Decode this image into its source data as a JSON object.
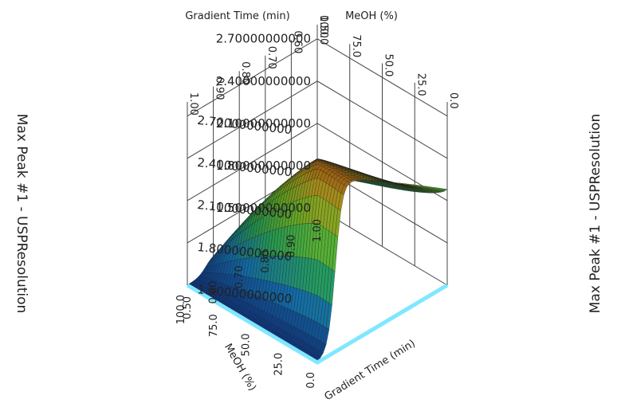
{
  "chart_data": {
    "type": "surface",
    "top_labels": {
      "gradient_time": "Gradient Time (min)",
      "meoh": "MeOH (%)"
    },
    "bottom_labels": {
      "meoh": "MeOH (%)",
      "gradient_time": "Gradient Time (min)"
    },
    "z_label": "Max Peak #1 - USPResolution",
    "gradient_time_ticks": [
      "0.50",
      "0.60",
      "0.70",
      "0.80",
      "0.90",
      "1.00"
    ],
    "meoh_ticks": [
      "100.0",
      "75.0",
      "50.0",
      "25.0",
      "0.0"
    ],
    "z_ticks": [
      "1.50000000000",
      "1.80000000000",
      "2.10000000000",
      "2.40000000000",
      "2.70000000000"
    ],
    "z_range": [
      1.5,
      2.8
    ],
    "surface_summary": {
      "max_resolution": 2.78,
      "min_resolution": 1.5,
      "plateau_resolution": 1.5
    }
  }
}
